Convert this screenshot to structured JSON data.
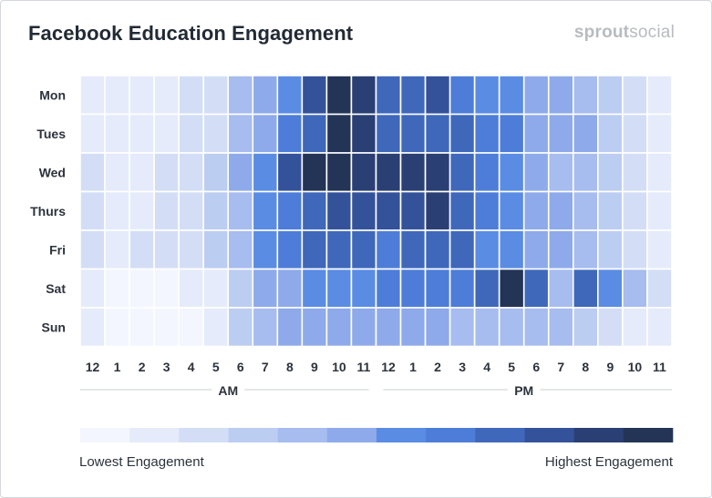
{
  "header": {
    "title": "Facebook Education Engagement",
    "brand_bold": "sprout",
    "brand_regular": "social"
  },
  "chart_data": {
    "type": "heatmap",
    "title": "Facebook Education Engagement",
    "rows": [
      "Mon",
      "Tues",
      "Wed",
      "Thurs",
      "Fri",
      "Sat",
      "Sun"
    ],
    "columns": [
      "12",
      "1",
      "2",
      "3",
      "4",
      "5",
      "6",
      "7",
      "8",
      "9",
      "10",
      "11",
      "12",
      "1",
      "2",
      "3",
      "4",
      "5",
      "6",
      "7",
      "8",
      "9",
      "10",
      "11"
    ],
    "period_labels": [
      "AM",
      "PM"
    ],
    "levels": [
      [
        1,
        1,
        1,
        1,
        2,
        2,
        4,
        5,
        6,
        9,
        11,
        10,
        8,
        8,
        9,
        7,
        6,
        6,
        5,
        5,
        4,
        3,
        2,
        1
      ],
      [
        1,
        1,
        1,
        1,
        2,
        2,
        4,
        5,
        7,
        8,
        11,
        10,
        8,
        8,
        8,
        8,
        7,
        7,
        5,
        5,
        5,
        3,
        2,
        1
      ],
      [
        2,
        1,
        1,
        2,
        2,
        3,
        5,
        6,
        9,
        11,
        11,
        10,
        10,
        10,
        10,
        8,
        7,
        6,
        5,
        4,
        4,
        3,
        2,
        1
      ],
      [
        2,
        1,
        1,
        2,
        2,
        3,
        4,
        6,
        7,
        8,
        9,
        9,
        9,
        9,
        10,
        8,
        7,
        6,
        5,
        5,
        4,
        3,
        2,
        1
      ],
      [
        2,
        1,
        2,
        2,
        2,
        3,
        4,
        6,
        7,
        8,
        8,
        8,
        7,
        8,
        8,
        8,
        6,
        6,
        5,
        5,
        4,
        3,
        2,
        1
      ],
      [
        1,
        0,
        0,
        0,
        1,
        1,
        3,
        5,
        5,
        6,
        6,
        6,
        7,
        7,
        7,
        7,
        8,
        11,
        8,
        4,
        8,
        6,
        4,
        2
      ],
      [
        1,
        0,
        0,
        0,
        0,
        1,
        3,
        4,
        5,
        5,
        5,
        5,
        5,
        5,
        5,
        4,
        4,
        4,
        4,
        4,
        3,
        2,
        1,
        1
      ]
    ],
    "scale": {
      "colors": [
        "#f3f6fe",
        "#e5ebfb",
        "#d3def6",
        "#bccdf2",
        "#a7bcef",
        "#8eaaea",
        "#5a8ce4",
        "#4d7dd8",
        "#3f68bb",
        "#34529a",
        "#2a3f73",
        "#233456"
      ],
      "low_label": "Lowest Engagement",
      "high_label": "Highest Engagement"
    }
  }
}
